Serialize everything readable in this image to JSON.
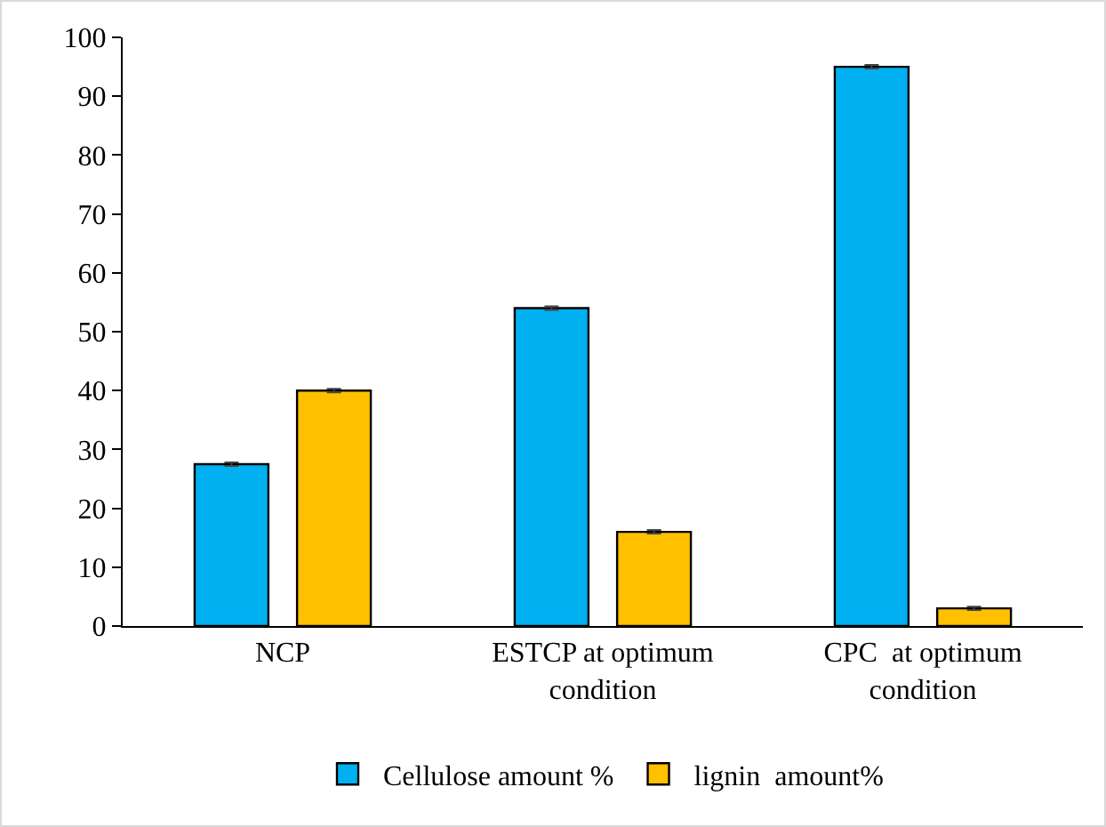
{
  "chart_data": {
    "type": "bar",
    "categories": [
      "NCP",
      "ESTCP at optimum condition",
      "CPC  at optimum condition"
    ],
    "series": [
      {
        "name": "Cellulose amount %",
        "color": "#00b0f0",
        "values": [
          27.5,
          54,
          95
        ],
        "errors": [
          0.3,
          0.3,
          0.3
        ]
      },
      {
        "name": "lignin  amount%",
        "color": "#ffc000",
        "values": [
          40,
          16,
          3
        ],
        "errors": [
          0.3,
          0.3,
          0.3
        ]
      }
    ],
    "ylim": [
      0,
      100
    ],
    "yticks": [
      0,
      10,
      20,
      30,
      40,
      50,
      60,
      70,
      80,
      90,
      100
    ],
    "grid": false,
    "legend": "bottom"
  }
}
